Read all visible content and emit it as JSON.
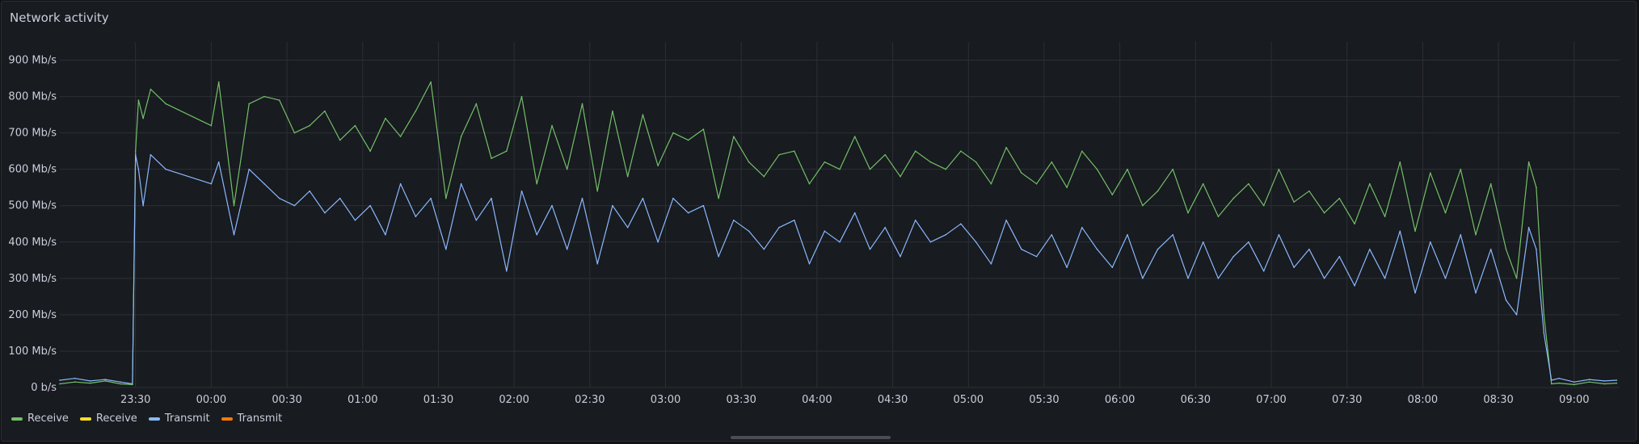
{
  "panel": {
    "title": "Network activity"
  },
  "legend": [
    {
      "label": "Receive",
      "color": "#73bf69"
    },
    {
      "label": "Receive",
      "color": "#fade2a"
    },
    {
      "label": "Transmit",
      "color": "#8ab8ff"
    },
    {
      "label": "Transmit",
      "color": "#ff780a"
    }
  ],
  "chart_data": {
    "type": "line",
    "title": "Network activity",
    "grid": true,
    "legend_position": "bottom-left",
    "y_unit": "Mb/s",
    "ylim": [
      0,
      950
    ],
    "y_ticks": [
      0,
      100,
      200,
      300,
      400,
      500,
      600,
      700,
      800,
      900
    ],
    "y_tick_labels": [
      "0 b/s",
      "100 Mb/s",
      "200 Mb/s",
      "300 Mb/s",
      "400 Mb/s",
      "500 Mb/s",
      "600 Mb/s",
      "700 Mb/s",
      "800 Mb/s",
      "900 Mb/s"
    ],
    "x_unit": "hours",
    "xlim": [
      23.0,
      33.3
    ],
    "x_ticks": [
      23.5,
      24.0,
      24.5,
      25.0,
      25.5,
      26.0,
      26.5,
      27.0,
      27.5,
      28.0,
      28.5,
      29.0,
      29.5,
      30.0,
      30.5,
      31.0,
      31.5,
      32.0,
      32.5,
      33.0
    ],
    "x_tick_labels": [
      "23:30",
      "00:00",
      "00:30",
      "01:00",
      "01:30",
      "02:00",
      "02:30",
      "03:00",
      "03:30",
      "04:00",
      "04:30",
      "05:00",
      "05:30",
      "06:00",
      "06:30",
      "07:00",
      "07:30",
      "08:00",
      "08:30",
      "09:00"
    ],
    "series": [
      {
        "name": "Receive",
        "color": "#73bf69",
        "x": [
          23.0,
          23.1,
          23.2,
          23.3,
          23.4,
          23.48,
          23.5,
          23.52,
          23.55,
          23.6,
          23.7,
          24.0,
          24.05,
          24.15,
          24.25,
          24.35,
          24.45,
          24.55,
          24.65,
          24.75,
          24.85,
          24.95,
          25.05,
          25.15,
          25.25,
          25.35,
          25.45,
          25.55,
          25.65,
          25.75,
          25.85,
          25.95,
          26.05,
          26.15,
          26.25,
          26.35,
          26.45,
          26.55,
          26.65,
          26.75,
          26.85,
          26.95,
          27.05,
          27.15,
          27.25,
          27.35,
          27.45,
          27.55,
          27.65,
          27.75,
          27.85,
          27.95,
          28.05,
          28.15,
          28.25,
          28.35,
          28.45,
          28.55,
          28.65,
          28.75,
          28.85,
          28.95,
          29.05,
          29.15,
          29.25,
          29.35,
          29.45,
          29.55,
          29.65,
          29.75,
          29.85,
          29.95,
          30.05,
          30.15,
          30.25,
          30.35,
          30.45,
          30.55,
          30.65,
          30.75,
          30.85,
          30.95,
          31.05,
          31.15,
          31.25,
          31.35,
          31.45,
          31.55,
          31.65,
          31.75,
          31.85,
          31.95,
          32.05,
          32.15,
          32.25,
          32.35,
          32.45,
          32.55,
          32.62,
          32.7,
          32.75,
          32.8,
          32.85,
          32.9,
          33.0,
          33.1,
          33.2,
          33.28
        ],
        "values": [
          10,
          15,
          12,
          18,
          10,
          8,
          650,
          790,
          740,
          820,
          780,
          720,
          840,
          500,
          780,
          800,
          790,
          700,
          720,
          760,
          680,
          720,
          650,
          740,
          690,
          760,
          840,
          520,
          690,
          780,
          630,
          650,
          800,
          560,
          720,
          600,
          780,
          540,
          760,
          580,
          750,
          610,
          700,
          680,
          710,
          520,
          690,
          620,
          580,
          640,
          650,
          560,
          620,
          600,
          690,
          600,
          640,
          580,
          650,
          620,
          600,
          650,
          620,
          560,
          660,
          590,
          560,
          620,
          550,
          650,
          600,
          530,
          600,
          500,
          540,
          600,
          480,
          560,
          470,
          520,
          560,
          500,
          600,
          510,
          540,
          480,
          520,
          450,
          560,
          470,
          620,
          430,
          590,
          480,
          600,
          420,
          560,
          380,
          300,
          620,
          550,
          200,
          10,
          12,
          8,
          15,
          10,
          12
        ]
      },
      {
        "name": "Receive",
        "color": "#fade2a",
        "x": [],
        "values": []
      },
      {
        "name": "Transmit",
        "color": "#8ab8ff",
        "x": [
          23.0,
          23.1,
          23.2,
          23.3,
          23.4,
          23.48,
          23.5,
          23.52,
          23.55,
          23.6,
          23.7,
          24.0,
          24.05,
          24.15,
          24.25,
          24.35,
          24.45,
          24.55,
          24.65,
          24.75,
          24.85,
          24.95,
          25.05,
          25.15,
          25.25,
          25.35,
          25.45,
          25.55,
          25.65,
          25.75,
          25.85,
          25.95,
          26.05,
          26.15,
          26.25,
          26.35,
          26.45,
          26.55,
          26.65,
          26.75,
          26.85,
          26.95,
          27.05,
          27.15,
          27.25,
          27.35,
          27.45,
          27.55,
          27.65,
          27.75,
          27.85,
          27.95,
          28.05,
          28.15,
          28.25,
          28.35,
          28.45,
          28.55,
          28.65,
          28.75,
          28.85,
          28.95,
          29.05,
          29.15,
          29.25,
          29.35,
          29.45,
          29.55,
          29.65,
          29.75,
          29.85,
          29.95,
          30.05,
          30.15,
          30.25,
          30.35,
          30.45,
          30.55,
          30.65,
          30.75,
          30.85,
          30.95,
          31.05,
          31.15,
          31.25,
          31.35,
          31.45,
          31.55,
          31.65,
          31.75,
          31.85,
          31.95,
          32.05,
          32.15,
          32.25,
          32.35,
          32.45,
          32.55,
          32.62,
          32.7,
          32.75,
          32.8,
          32.85,
          32.9,
          33.0,
          33.1,
          33.2,
          33.28
        ],
        "values": [
          20,
          25,
          18,
          22,
          15,
          10,
          640,
          600,
          500,
          640,
          600,
          560,
          620,
          420,
          600,
          560,
          520,
          500,
          540,
          480,
          520,
          460,
          500,
          420,
          560,
          470,
          520,
          380,
          560,
          460,
          520,
          320,
          540,
          420,
          500,
          380,
          520,
          340,
          500,
          440,
          520,
          400,
          520,
          480,
          500,
          360,
          460,
          430,
          380,
          440,
          460,
          340,
          430,
          400,
          480,
          380,
          440,
          360,
          460,
          400,
          420,
          450,
          400,
          340,
          460,
          380,
          360,
          420,
          330,
          440,
          380,
          330,
          420,
          300,
          380,
          420,
          300,
          400,
          300,
          360,
          400,
          320,
          420,
          330,
          380,
          300,
          360,
          280,
          380,
          300,
          430,
          260,
          400,
          300,
          420,
          260,
          380,
          240,
          200,
          440,
          380,
          150,
          20,
          25,
          15,
          22,
          18,
          20
        ]
      },
      {
        "name": "Transmit",
        "color": "#ff780a",
        "x": [],
        "values": []
      }
    ]
  }
}
